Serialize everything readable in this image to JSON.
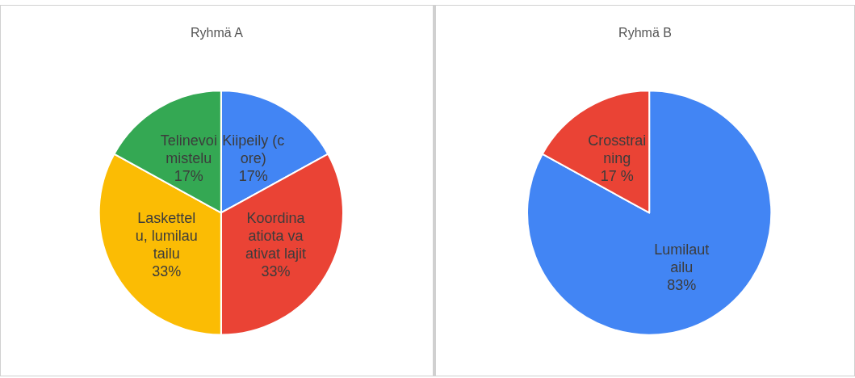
{
  "chart_data": [
    {
      "type": "pie",
      "title": "Ryhmä A",
      "categories": [
        "Kiipeily (core)",
        "Koordinaatiota vaativat lajit",
        "Laskettelu, lumilautailu",
        "Telinevoimistelu"
      ],
      "values": [
        17,
        33,
        33,
        17
      ],
      "colors": [
        "#4285f4",
        "#ea4335",
        "#fbbc04",
        "#34a853"
      ],
      "value_labels": [
        "17%",
        "33%",
        "33%",
        "17%"
      ],
      "legend": false
    },
    {
      "type": "pie",
      "title": "Ryhmä B",
      "categories": [
        "Lumilautailu",
        "Crosstraining"
      ],
      "values": [
        83,
        17
      ],
      "colors": [
        "#4285f4",
        "#ea4335"
      ],
      "value_labels": [
        "83%",
        "17 %"
      ],
      "legend": false
    }
  ]
}
